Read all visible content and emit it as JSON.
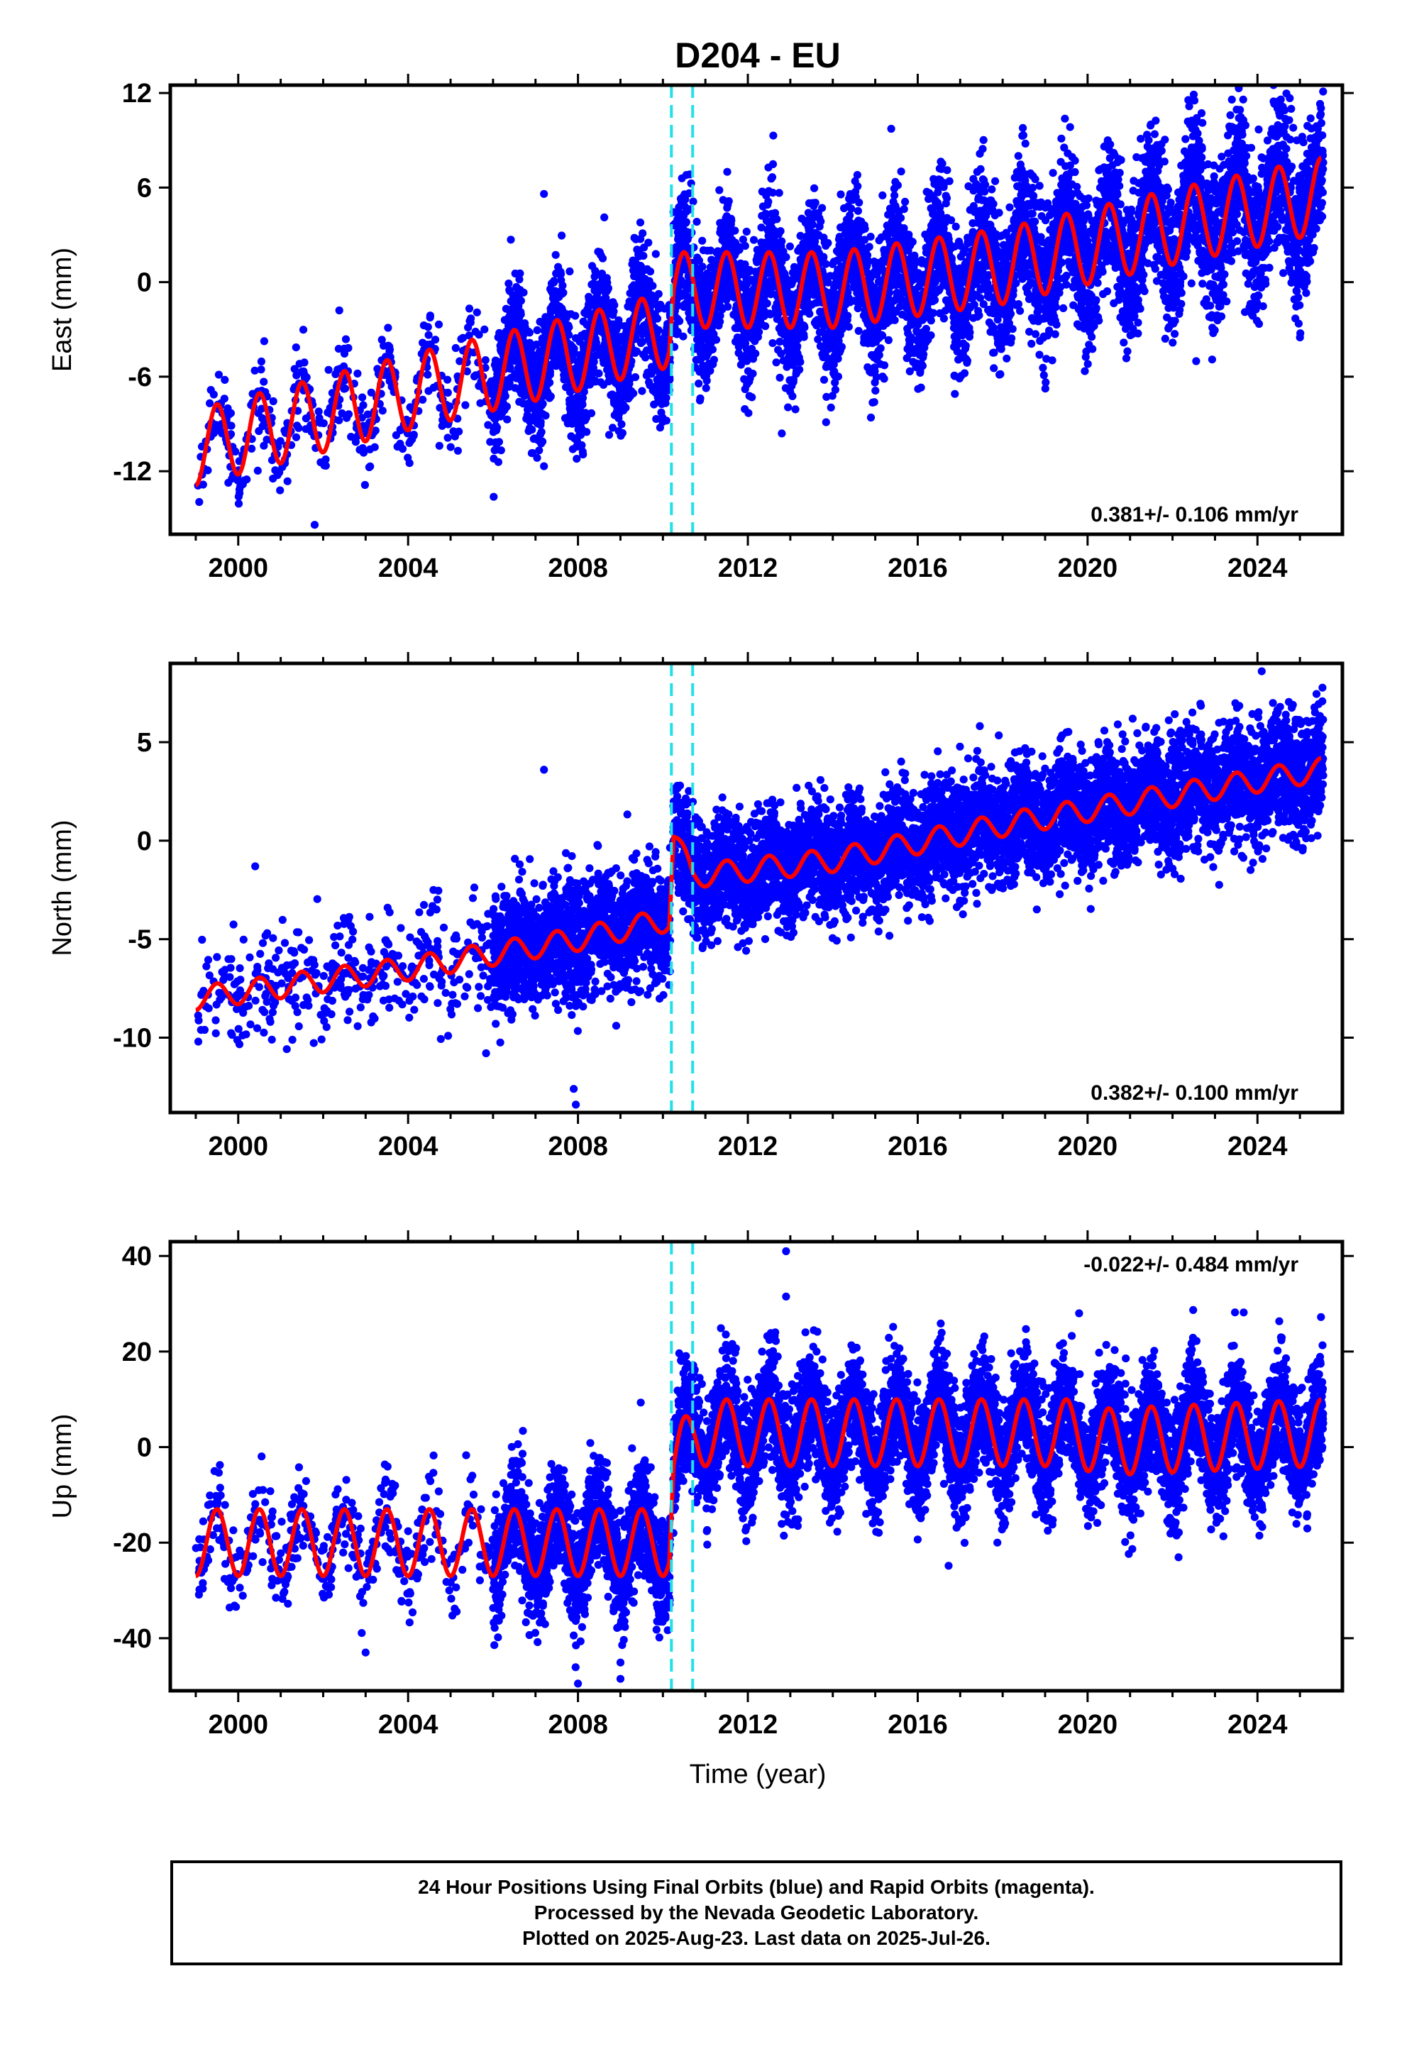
{
  "title": "D204 - EU",
  "x_axis": {
    "label": "Time (year)",
    "ticks": [
      "2000",
      "2004",
      "2008",
      "2012",
      "2016",
      "2020",
      "2024"
    ],
    "tick_values": [
      2000,
      2004,
      2008,
      2012,
      2016,
      2020,
      2024
    ],
    "xlim": [
      1998.4,
      2026.0
    ]
  },
  "colors": {
    "data_points": "#0000ff",
    "model_fit": "#ff0000",
    "offset_lines": "#22e0e8",
    "axes": "#000000"
  },
  "chart_data": [
    {
      "type": "scatter",
      "component": "East",
      "ylabel": "East (mm)",
      "ylim": [
        -16,
        12.5
      ],
      "yticks": [
        12,
        6,
        0,
        -6,
        -12
      ],
      "rate_text": "0.381+/- 0.106 mm/yr",
      "rate_position": "bottom-right",
      "offsets": [
        2010.2,
        2010.7
      ],
      "series": [
        {
          "name": "24 Hour Positions (Final Orbits)",
          "color": "#0000ff",
          "trend": [
            [
              1999.0,
              -10.5
            ],
            [
              2004.0,
              -7.0
            ],
            [
              2008.0,
              -4.5
            ],
            [
              2010.15,
              -3.0
            ],
            [
              2010.25,
              -0.5
            ],
            [
              2014.0,
              -0.5
            ],
            [
              2018.0,
              1.0
            ],
            [
              2022.0,
              3.5
            ],
            [
              2025.5,
              5.5
            ]
          ],
          "spread": [
            [
              1999.0,
              1.3
            ],
            [
              2006.0,
              1.7
            ],
            [
              2010.2,
              2.0
            ],
            [
              2019.0,
              2.2
            ],
            [
              2025.5,
              2.4
            ]
          ],
          "annual_amplitude": [
            [
              1999.0,
              2.4
            ],
            [
              2008.0,
              2.4
            ],
            [
              2010.25,
              2.4
            ],
            [
              2025.5,
              2.4
            ]
          ],
          "outliers": [
            [
              2007.2,
              5.6
            ],
            [
              2001.8,
              -15.4
            ],
            [
              2012.8,
              -9.6
            ],
            [
              2022.5,
              11.9
            ]
          ]
        },
        {
          "name": "Model",
          "color": "#ff0000",
          "type": "line",
          "trend": [
            [
              1999.0,
              -10.5
            ],
            [
              2004.0,
              -7.0
            ],
            [
              2008.0,
              -4.5
            ],
            [
              2010.15,
              -3.0
            ],
            [
              2010.25,
              -0.5
            ],
            [
              2014.0,
              -0.5
            ],
            [
              2018.0,
              1.0
            ],
            [
              2022.0,
              3.5
            ],
            [
              2025.5,
              5.5
            ]
          ],
          "annual_amplitude": 2.4,
          "x_range": [
            1999.0,
            2025.5
          ]
        }
      ]
    },
    {
      "type": "scatter",
      "component": "North",
      "ylabel": "North (mm)",
      "ylim": [
        -13.8,
        9.0
      ],
      "yticks": [
        5,
        0,
        -5,
        -10
      ],
      "rate_text": "0.382+/- 0.100 mm/yr",
      "rate_position": "bottom-right",
      "offsets": [
        2010.2,
        2010.7
      ],
      "series": [
        {
          "name": "24 Hour Positions (Final Orbits)",
          "color": "#0000ff",
          "trend": [
            [
              1999.0,
              -8.0
            ],
            [
              2004.0,
              -6.5
            ],
            [
              2008.0,
              -5.0
            ],
            [
              2010.15,
              -4.0
            ],
            [
              2010.25,
              0.2
            ],
            [
              2010.7,
              -1.8
            ],
            [
              2014.0,
              -1.0
            ],
            [
              2018.0,
              0.8
            ],
            [
              2022.0,
              2.3
            ],
            [
              2025.5,
              3.6
            ]
          ],
          "spread": [
            [
              1999.0,
              1.3
            ],
            [
              2006.0,
              1.5
            ],
            [
              2010.2,
              1.4
            ],
            [
              2016.0,
              1.4
            ],
            [
              2025.5,
              1.5
            ]
          ],
          "annual_amplitude": [
            [
              1999.0,
              0.6
            ],
            [
              2025.5,
              0.6
            ]
          ],
          "outliers": [
            [
              2007.2,
              3.6
            ],
            [
              2007.9,
              -12.6
            ],
            [
              2007.95,
              -13.4
            ],
            [
              2024.1,
              8.6
            ],
            [
              2000.4,
              -1.3
            ]
          ]
        },
        {
          "name": "Model",
          "color": "#ff0000",
          "type": "line",
          "trend": [
            [
              1999.0,
              -8.0
            ],
            [
              2004.0,
              -6.5
            ],
            [
              2008.0,
              -5.0
            ],
            [
              2010.15,
              -4.0
            ],
            [
              2010.25,
              0.2
            ],
            [
              2010.7,
              -1.8
            ],
            [
              2014.0,
              -1.0
            ],
            [
              2018.0,
              0.8
            ],
            [
              2022.0,
              2.3
            ],
            [
              2025.5,
              3.6
            ]
          ],
          "annual_amplitude": 0.6,
          "x_range": [
            1999.0,
            2025.5
          ]
        }
      ]
    },
    {
      "type": "scatter",
      "component": "Up",
      "ylabel": "Up (mm)",
      "ylim": [
        -51,
        43
      ],
      "yticks": [
        40,
        20,
        0,
        -20,
        -40
      ],
      "rate_text": "-0.022+/- 0.484 mm/yr",
      "rate_position": "top-right",
      "offsets": [
        2010.2,
        2010.7
      ],
      "series": [
        {
          "name": "24 Hour Positions (Final Orbits)",
          "color": "#0000ff",
          "trend": [
            [
              1999.0,
              -20.0
            ],
            [
              2004.0,
              -20.0
            ],
            [
              2008.0,
              -20.0
            ],
            [
              2010.15,
              -20.0
            ],
            [
              2010.25,
              -4.0
            ],
            [
              2010.8,
              3.0
            ],
            [
              2014.0,
              3.0
            ],
            [
              2019.8,
              3.0
            ],
            [
              2020.2,
              1.0
            ],
            [
              2025.5,
              3.0
            ]
          ],
          "spread": [
            [
              1999.0,
              4.5
            ],
            [
              2006.0,
              5.5
            ],
            [
              2010.2,
              6.0
            ],
            [
              2016.0,
              6.0
            ],
            [
              2025.5,
              6.0
            ]
          ],
          "annual_amplitude": [
            [
              1999.0,
              7.0
            ],
            [
              2025.5,
              7.0
            ]
          ],
          "outliers": [
            [
              2008.0,
              -49.5
            ],
            [
              2009.0,
              -48.5
            ],
            [
              2012.9,
              41.0
            ],
            [
              2012.9,
              31.5
            ],
            [
              2019.8,
              28.0
            ],
            [
              2003.0,
              -43.0
            ]
          ]
        },
        {
          "name": "Model",
          "color": "#ff0000",
          "type": "line",
          "trend": [
            [
              1999.0,
              -20.0
            ],
            [
              2004.0,
              -20.0
            ],
            [
              2008.0,
              -20.0
            ],
            [
              2010.15,
              -20.0
            ],
            [
              2010.25,
              -4.0
            ],
            [
              2010.8,
              3.0
            ],
            [
              2014.0,
              3.0
            ],
            [
              2019.8,
              3.0
            ],
            [
              2020.2,
              1.0
            ],
            [
              2025.5,
              3.0
            ]
          ],
          "annual_amplitude": 7.0,
          "x_range": [
            1999.0,
            2025.5
          ]
        }
      ]
    }
  ],
  "footer": {
    "line1": "24 Hour Positions Using Final Orbits (blue) and Rapid Orbits (magenta).",
    "line2": "Processed by the Nevada Geodetic Laboratory.",
    "line3": "Plotted on 2025-Aug-23. Last data on 2025-Jul-26."
  }
}
